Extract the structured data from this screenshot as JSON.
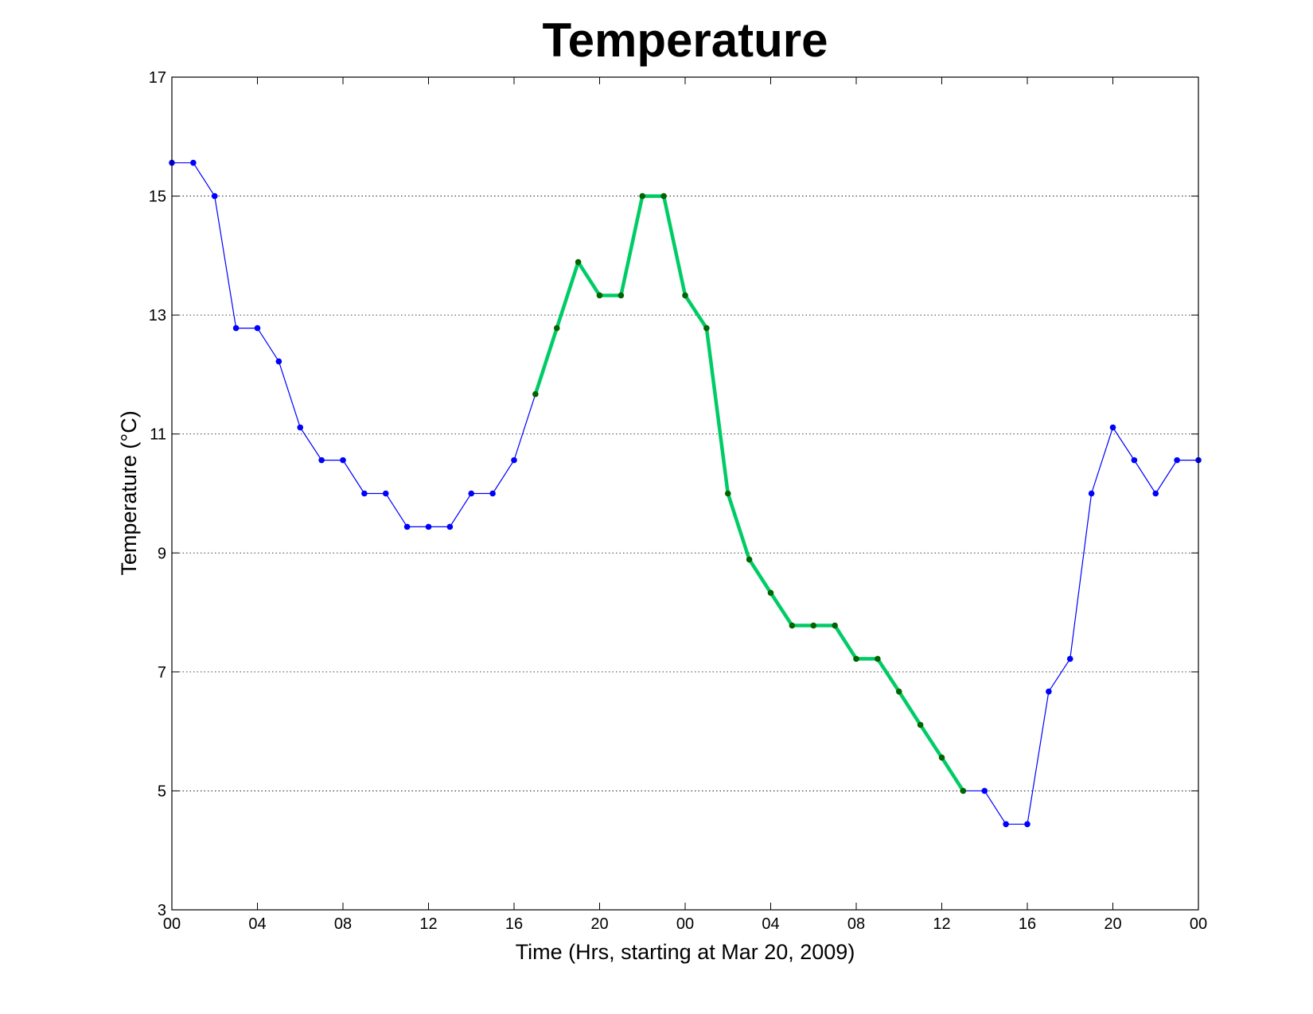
{
  "chart_data": {
    "type": "line",
    "title": "Temperature",
    "xlabel": "Time (Hrs, starting at Mar 20, 2009)",
    "ylabel": "Temperature (°C)",
    "ylim": [
      3,
      17
    ],
    "yticks": [
      3,
      5,
      7,
      9,
      11,
      13,
      15,
      17
    ],
    "xlim": [
      "2009-03-20 00:00",
      "2009-03-22 00:00"
    ],
    "xticks": [
      {
        "x": "2009-03-20 00:00",
        "label": "00"
      },
      {
        "x": "2009-03-20 04:00",
        "label": "04"
      },
      {
        "x": "2009-03-20 08:00",
        "label": "08"
      },
      {
        "x": "2009-03-20 12:00",
        "label": "12"
      },
      {
        "x": "2009-03-20 16:00",
        "label": "16"
      },
      {
        "x": "2009-03-20 20:00",
        "label": "20"
      },
      {
        "x": "2009-03-21 00:00",
        "label": "00"
      },
      {
        "x": "2009-03-21 04:00",
        "label": "04"
      },
      {
        "x": "2009-03-21 08:00",
        "label": "08"
      },
      {
        "x": "2009-03-21 12:00",
        "label": "12"
      },
      {
        "x": "2009-03-21 16:00",
        "label": "16"
      },
      {
        "x": "2009-03-21 20:00",
        "label": "20"
      },
      {
        "x": "2009-03-22 00:00",
        "label": "00"
      }
    ],
    "grid": "horizontal-dotted",
    "x": [
      "2009-03-20 00:00",
      "2009-03-20 01:00",
      "2009-03-20 02:00",
      "2009-03-20 03:00",
      "2009-03-20 04:00",
      "2009-03-20 05:00",
      "2009-03-20 06:00",
      "2009-03-20 07:00",
      "2009-03-20 08:00",
      "2009-03-20 09:00",
      "2009-03-20 10:00",
      "2009-03-20 11:00",
      "2009-03-20 12:00",
      "2009-03-20 13:00",
      "2009-03-20 14:00",
      "2009-03-20 15:00",
      "2009-03-20 16:00",
      "2009-03-20 17:00",
      "2009-03-20 18:00",
      "2009-03-20 19:00",
      "2009-03-20 20:00",
      "2009-03-20 21:00",
      "2009-03-20 22:00",
      "2009-03-20 23:00",
      "2009-03-21 00:00",
      "2009-03-21 01:00",
      "2009-03-21 02:00",
      "2009-03-21 03:00",
      "2009-03-21 04:00",
      "2009-03-21 05:00",
      "2009-03-21 06:00",
      "2009-03-21 07:00",
      "2009-03-21 08:00",
      "2009-03-21 09:00",
      "2009-03-21 10:00",
      "2009-03-21 11:00",
      "2009-03-21 12:00",
      "2009-03-21 13:00",
      "2009-03-21 14:00",
      "2009-03-21 15:00",
      "2009-03-21 16:00",
      "2009-03-21 17:00",
      "2009-03-21 18:00",
      "2009-03-21 19:00",
      "2009-03-21 20:00",
      "2009-03-21 21:00",
      "2009-03-21 22:00",
      "2009-03-21 23:00",
      "2009-03-22 00:00"
    ],
    "series": [
      {
        "values": [
          15.56,
          15.56,
          15.0,
          12.78,
          12.78,
          12.22,
          11.11,
          10.56,
          10.56,
          10.0,
          10.0,
          9.44,
          9.44,
          9.44,
          10.0,
          10.0,
          10.56,
          11.67,
          12.78,
          13.89,
          13.33,
          13.33,
          15.0,
          15.0,
          13.33,
          12.78,
          10.0,
          8.89,
          8.33,
          7.78,
          7.78,
          7.78,
          7.22,
          7.22,
          6.67,
          6.11,
          5.56,
          5.0,
          5.0,
          4.44,
          4.44,
          6.67,
          7.22,
          10.0,
          11.11,
          10.56,
          10.0,
          10.56,
          10.56
        ],
        "color": "#0000ff",
        "marker_color": "#0000ff",
        "line": "thin"
      },
      {
        "highlight_start": "2009-03-20 17:00",
        "highlight_end": "2009-03-21 13:00",
        "color": "#00cc66",
        "marker_color": "#006400",
        "line": "thick"
      }
    ]
  }
}
